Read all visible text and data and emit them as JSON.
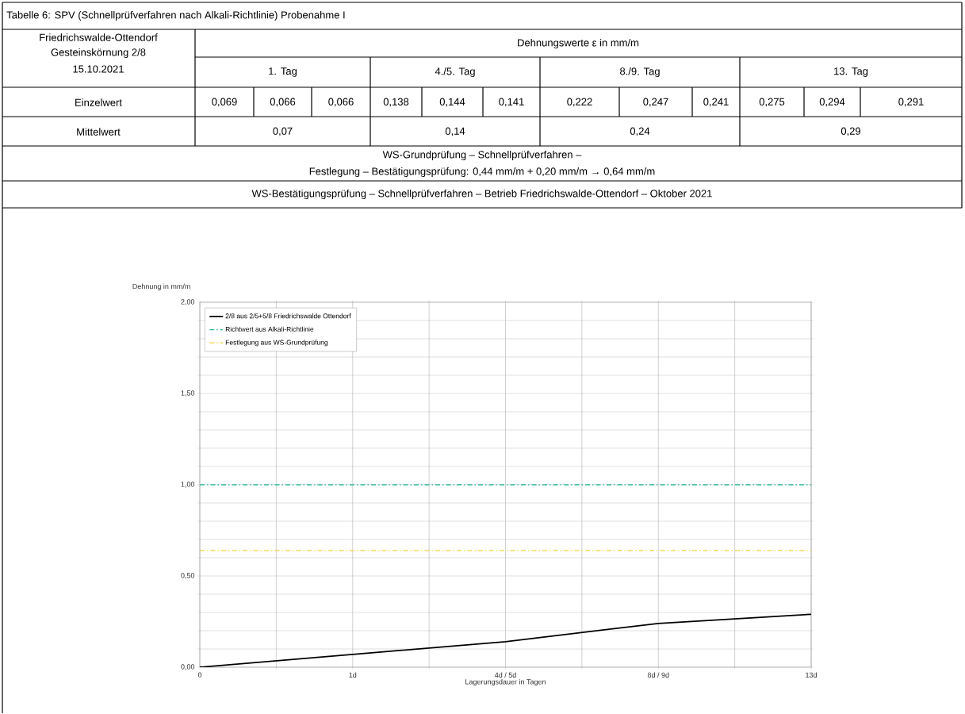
{
  "chart_data": {
    "type": "line",
    "annotations": [
      "Tabelle 6: SPV (Schnellprüfverfahren nach Alkali-Richtlinie) Probenahme I",
      "Friedrichswalde-Ottendorf",
      "Gesteinskörnung 2/8",
      "15.10.2021",
      "Dehnungswerte ε in mm/m",
      "1. Tag",
      "4./5. Tag",
      "8./9. Tag",
      "13. Tag",
      "Einzelwert",
      "0,069",
      "0,066",
      "0,066",
      "0,138",
      "0,144",
      "0,141",
      "0,222",
      "0,247",
      "0,241",
      "0,275",
      "0,294",
      "0,291",
      "Mittelwert",
      "0,07",
      "0,14",
      "0,24",
      "0,29",
      "WS-Grundprüfung – Schnellprüfverfahren –",
      "Festlegung – Bestätigungsprüfung: 0,44 mm/m + 0,20 mm/m → 0,64 mm/m",
      "WS-Bestätigungsprüfung – Schnellprüfverfahren – Betrieb Friedrichswalde-Ottendorf – Oktober 2021"
    ],
    "xlabel": "Lagerungsdauer  in Tagen",
    "ylabel": "Dehnung in mm/m",
    "categories": [
      "0",
      "1d",
      "4d / 5d",
      "8d / 9d",
      "13d"
    ],
    "series": [
      {
        "name": "2/8 aus 2/5+5/8 Friedrichswalde Ottendorf",
        "color": "#000000",
        "values": [
          0,
          0.07,
          0.14,
          0.24,
          0.29
        ]
      }
    ],
    "ref_lines": [
      {
        "axis": "y",
        "value": 1.0,
        "label": "Richtwert aus Alkali-Richtlinie",
        "color": "#2fb89c",
        "line_style": "dashed"
      },
      {
        "axis": "y",
        "value": 0.64,
        "label": "Festlegung aus WS-Grundprüfung",
        "color": "#f2d23c",
        "line_style": "dashed"
      }
    ],
    "ylim": [
      0,
      2
    ],
    "yticks": [
      {
        "value": 0,
        "label": "0,00"
      },
      {
        "value": 0.1,
        "label": null
      },
      {
        "value": 0.2,
        "label": null
      },
      {
        "value": 0.3,
        "label": null
      },
      {
        "value": 0.4,
        "label": null
      },
      {
        "value": 0.5,
        "label": "0,50"
      },
      {
        "value": 0.6,
        "label": null
      },
      {
        "value": 0.7,
        "label": null
      },
      {
        "value": 0.8,
        "label": null
      },
      {
        "value": 0.9,
        "label": null
      },
      {
        "value": 1.0,
        "label": "1,00"
      },
      {
        "value": 1.1,
        "label": null
      },
      {
        "value": 1.2,
        "label": null
      },
      {
        "value": 1.3,
        "label": null
      },
      {
        "value": 1.4,
        "label": null
      },
      {
        "value": 1.5,
        "label": "1,50"
      },
      {
        "value": 1.6,
        "label": null
      },
      {
        "value": 1.7,
        "label": null
      },
      {
        "value": 1.8,
        "label": null
      },
      {
        "value": 1.9,
        "label": null
      },
      {
        "value": 2.0,
        "label": "2,00"
      }
    ],
    "grid": true,
    "legend": "top left"
  }
}
